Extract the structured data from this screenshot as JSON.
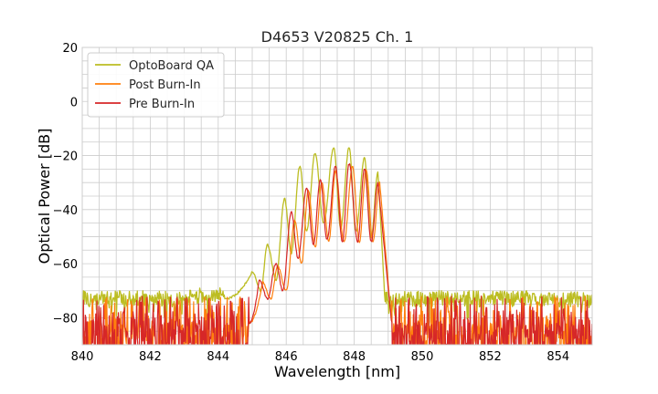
{
  "chart_data": {
    "type": "line",
    "title": "D4653 V20825 Ch. 1",
    "xlabel": "Wavelength [nm]",
    "ylabel": "Optical Power [dB]",
    "xlim": [
      840,
      855
    ],
    "ylim": [
      -90,
      20
    ],
    "x_ticks": [
      "840",
      "842",
      "844",
      "846",
      "848",
      "850",
      "852",
      "854"
    ],
    "y_ticks": [
      "20",
      "0",
      "−20",
      "−40",
      "−60",
      "−80"
    ],
    "grid": true,
    "legend_position": "top-left",
    "series": [
      {
        "name": "OptoBoard QA",
        "color": "#bcbd22",
        "noise_floor_level": -73,
        "signal_range": [
          844.2,
          848.9
        ],
        "peaks": [
          {
            "x": 845.0,
            "y": -63
          },
          {
            "x": 845.45,
            "y": -53
          },
          {
            "x": 845.95,
            "y": -36
          },
          {
            "x": 846.4,
            "y": -24
          },
          {
            "x": 846.85,
            "y": -19
          },
          {
            "x": 847.4,
            "y": -17
          },
          {
            "x": 847.85,
            "y": -17
          },
          {
            "x": 848.3,
            "y": -21
          },
          {
            "x": 848.7,
            "y": -26
          }
        ],
        "valleys": [
          {
            "x": 845.25,
            "y": -70
          },
          {
            "x": 845.7,
            "y": -66
          },
          {
            "x": 846.15,
            "y": -56
          },
          {
            "x": 846.6,
            "y": -48
          },
          {
            "x": 847.1,
            "y": -45
          },
          {
            "x": 847.6,
            "y": -47
          },
          {
            "x": 848.05,
            "y": -48
          },
          {
            "x": 848.5,
            "y": -50
          }
        ]
      },
      {
        "name": "Post Burn-In",
        "color": "#ff7f0e",
        "noise_floor_level": -82,
        "signal_range": [
          844.9,
          849.1
        ],
        "peaks": [
          {
            "x": 845.3,
            "y": -67
          },
          {
            "x": 845.75,
            "y": -61
          },
          {
            "x": 846.25,
            "y": -44
          },
          {
            "x": 846.65,
            "y": -33
          },
          {
            "x": 847.05,
            "y": -30
          },
          {
            "x": 847.45,
            "y": -26
          },
          {
            "x": 847.95,
            "y": -24
          },
          {
            "x": 848.35,
            "y": -25
          },
          {
            "x": 848.75,
            "y": -30
          }
        ],
        "valleys": [
          {
            "x": 845.55,
            "y": -73
          },
          {
            "x": 846.0,
            "y": -70
          },
          {
            "x": 846.45,
            "y": -60
          },
          {
            "x": 846.85,
            "y": -54
          },
          {
            "x": 847.25,
            "y": -52
          },
          {
            "x": 847.7,
            "y": -52
          },
          {
            "x": 848.15,
            "y": -52
          },
          {
            "x": 848.55,
            "y": -52
          }
        ]
      },
      {
        "name": "Pre Burn-In",
        "color": "#d62728",
        "noise_floor_level": -82,
        "signal_range": [
          844.9,
          849.1
        ],
        "peaks": [
          {
            "x": 845.2,
            "y": -66
          },
          {
            "x": 845.7,
            "y": -60
          },
          {
            "x": 846.15,
            "y": -41
          },
          {
            "x": 846.6,
            "y": -32
          },
          {
            "x": 847.0,
            "y": -29
          },
          {
            "x": 847.45,
            "y": -24
          },
          {
            "x": 847.85,
            "y": -23
          },
          {
            "x": 848.3,
            "y": -25
          },
          {
            "x": 848.7,
            "y": -30
          }
        ],
        "valleys": [
          {
            "x": 845.45,
            "y": -73
          },
          {
            "x": 845.9,
            "y": -70
          },
          {
            "x": 846.35,
            "y": -58
          },
          {
            "x": 846.8,
            "y": -53
          },
          {
            "x": 847.2,
            "y": -51
          },
          {
            "x": 847.65,
            "y": -52
          },
          {
            "x": 848.1,
            "y": -52
          },
          {
            "x": 848.5,
            "y": -52
          }
        ]
      }
    ]
  }
}
